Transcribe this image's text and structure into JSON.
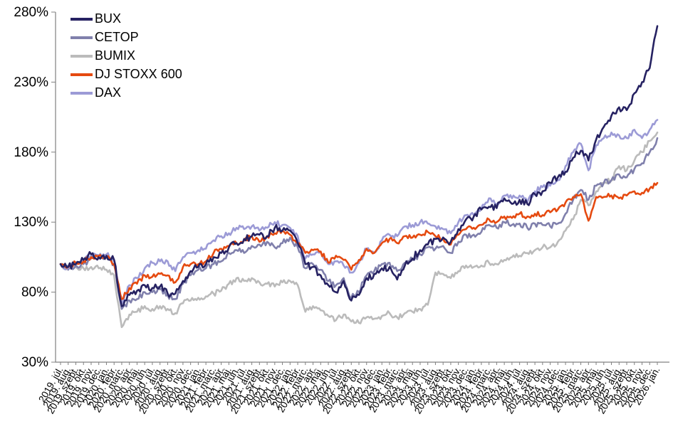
{
  "chart_data": {
    "type": "line",
    "title": "",
    "xlabel": "",
    "ylabel": "",
    "grid": false,
    "legend_position": "top-left",
    "ylim": [
      30,
      280
    ],
    "y_ticks": [
      {
        "value": 280,
        "label": "280%"
      },
      {
        "value": 230,
        "label": "230%"
      },
      {
        "value": 180,
        "label": "180%"
      },
      {
        "value": 130,
        "label": "130%"
      },
      {
        "value": 80,
        "label": "80%"
      },
      {
        "value": 30,
        "label": "30%"
      }
    ],
    "x_labels": [
      "2019. júl.",
      "2019. aug.",
      "2019. szept.",
      "2019. okt.",
      "2019. nov.",
      "2019. dec.",
      "2020. jan.",
      "2020. febr.",
      "2020. márc.",
      "2020. ápr.",
      "2020. máj.",
      "2020. jún.",
      "2020. júl.",
      "2020. aug.",
      "2020. szept.",
      "2020. okt.",
      "2020. nov.",
      "2020. dec.",
      "2021. jan.",
      "2021. febr.",
      "2021. márc.",
      "2021. ápr.",
      "2021. máj.",
      "2021. jún.",
      "2021. júl.",
      "2021. aug.",
      "2021. szept.",
      "2021. okt.",
      "2021. nov.",
      "2021. dec.",
      "2022. jan.",
      "2022. febr.",
      "2022. márc.",
      "2022. ápr.",
      "2022. máj.",
      "2022. jún.",
      "2022. júl.",
      "2022. aug.",
      "2022. szept.",
      "2022. okt.",
      "2022. nov.",
      "2022. dec.",
      "2023. jan.",
      "2023. febr.",
      "2023. márc.",
      "2023. ápr.",
      "2023. máj.",
      "2023. jún.",
      "2023. júl.",
      "2023. aug.",
      "2023. szept.",
      "2023. okt.",
      "2023. nov.",
      "2023. dec.",
      "2024. jan.",
      "2024. febr.",
      "2024. márc.",
      "2024. ápr.",
      "2024. máj.",
      "2024. jún.",
      "2024. júl.",
      "2024. aug.",
      "2024. szept.",
      "2024. okt.",
      "2024. nov.",
      "2024. dec.",
      "2025. jan.",
      "2025. febr.",
      "2025. márc.",
      "2025. ápr.",
      "2025. máj.",
      "2025. jún.",
      "2025. júl.",
      "2025. aug.",
      "2025. szept.",
      "2025. okt.",
      "2025. nov.",
      "2025. dec.",
      "2026. jan."
    ],
    "series": [
      {
        "name": "BUX",
        "color": "#262262",
        "values": [
          100,
          98,
          100,
          103,
          107,
          105,
          106,
          103,
          70,
          78,
          81,
          85,
          83,
          84,
          79,
          79,
          88,
          95,
          98,
          100,
          105,
          108,
          112,
          115,
          118,
          120,
          121,
          120,
          126,
          124,
          124,
          115,
          100,
          98,
          92,
          85,
          80,
          88,
          74,
          78,
          90,
          93,
          97,
          98,
          89,
          99,
          104,
          110,
          114,
          118,
          119,
          116,
          125,
          132,
          134,
          139,
          141,
          140,
          147,
          143,
          146,
          143,
          150,
          152,
          158,
          162,
          166,
          176,
          181,
          174,
          189,
          198,
          206,
          212,
          210,
          222,
          230,
          240,
          270
        ]
      },
      {
        "name": "CETOP",
        "color": "#8080AC",
        "values": [
          100,
          96,
          99,
          100,
          104,
          104,
          105,
          100,
          68,
          74,
          75,
          80,
          80,
          82,
          78,
          75,
          86,
          92,
          96,
          97,
          100,
          102,
          108,
          110,
          108,
          113,
          114,
          116,
          112,
          115,
          119,
          112,
          97,
          100,
          96,
          88,
          85,
          90,
          76,
          80,
          92,
          95,
          100,
          101,
          95,
          101,
          103,
          107,
          112,
          111,
          113,
          108,
          116,
          121,
          121,
          123,
          128,
          126,
          130,
          128,
          129,
          126,
          129,
          128,
          127,
          129,
          136,
          146,
          153,
          146,
          156,
          158,
          160,
          164,
          162,
          168,
          172,
          180,
          190
        ]
      },
      {
        "name": "BUMIX",
        "color": "#BBBBBB",
        "values": [
          100,
          97,
          98,
          97,
          98,
          97,
          96,
          92,
          55,
          64,
          66,
          70,
          68,
          70,
          68,
          65,
          72,
          74,
          76,
          77,
          79,
          81,
          86,
          90,
          88,
          90,
          87,
          86,
          84,
          87,
          88,
          85,
          66,
          70,
          67,
          63,
          60,
          64,
          59,
          58,
          62,
          61,
          63,
          65,
          62,
          65,
          66,
          68,
          71,
          94,
          93,
          90,
          95,
          99,
          98,
          99,
          101,
          100,
          103,
          105,
          106,
          108,
          110,
          112,
          112,
          116,
          124,
          132,
          146,
          142,
          152,
          158,
          160,
          170,
          167,
          174,
          180,
          188,
          194
        ]
      },
      {
        "name": "DJ STOXX 600",
        "color": "#E54A10",
        "values": [
          100,
          98,
          101,
          102,
          105,
          106,
          105,
          100,
          75,
          83,
          86,
          92,
          91,
          93,
          92,
          87,
          98,
          100,
          100,
          102,
          108,
          111,
          113,
          115,
          117,
          120,
          116,
          120,
          122,
          124,
          121,
          115,
          108,
          110,
          109,
          101,
          106,
          103,
          96,
          103,
          111,
          108,
          115,
          118,
          115,
          120,
          119,
          121,
          123,
          120,
          118,
          114,
          121,
          125,
          126,
          128,
          132,
          130,
          134,
          133,
          136,
          134,
          136,
          135,
          137,
          139,
          144,
          148,
          150,
          131,
          148,
          148,
          149,
          147,
          149,
          152,
          151,
          154,
          158
        ]
      },
      {
        "name": "DAX",
        "color": "#9C9BD6",
        "values": [
          100,
          97,
          101,
          103,
          106,
          106,
          107,
          103,
          72,
          85,
          90,
          97,
          101,
          102,
          102,
          95,
          105,
          108,
          110,
          111,
          117,
          120,
          122,
          126,
          125,
          127,
          124,
          126,
          130,
          128,
          126,
          120,
          104,
          107,
          109,
          100,
          102,
          99,
          94,
          101,
          111,
          108,
          117,
          121,
          120,
          127,
          128,
          130,
          129,
          127,
          125,
          122,
          130,
          135,
          135,
          140,
          147,
          143,
          149,
          147,
          149,
          144,
          152,
          155,
          156,
          160,
          170,
          180,
          186,
          167,
          185,
          190,
          194,
          192,
          190,
          196,
          190,
          196,
          203
        ]
      }
    ],
    "axis_color": "#808080",
    "label_color": "#000000"
  }
}
